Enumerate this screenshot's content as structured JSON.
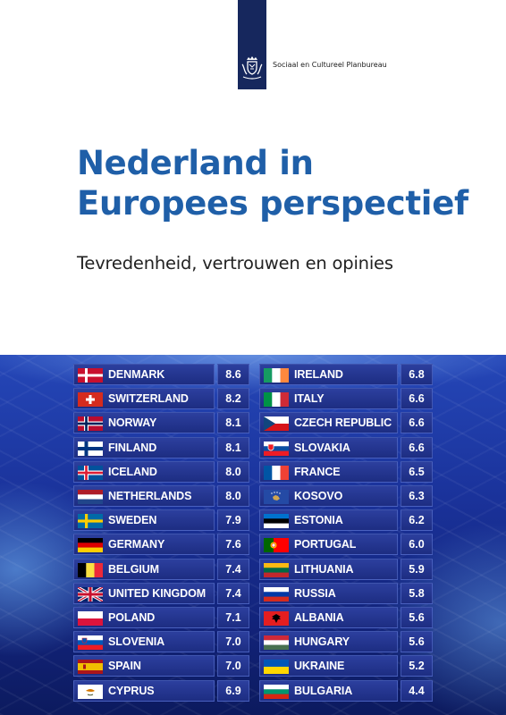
{
  "header": {
    "organization": "Sociaal en Cultureel Planbureau",
    "crest_icon": "royal-coat-of-arms-icon"
  },
  "title": {
    "line1": "Nederland in",
    "line2": "Europees perspectief"
  },
  "subtitle": "Tevredenheid,  vertrouwen en opinies",
  "colors": {
    "title": "#1f5fa8",
    "logo_strip": "#16275d",
    "board": "#1a329a"
  },
  "scoreboard": {
    "left": [
      {
        "country": "DENMARK",
        "score": "8.6",
        "flag": "denmark-flag-icon"
      },
      {
        "country": "SWITZERLAND",
        "score": "8.2",
        "flag": "switzerland-flag-icon"
      },
      {
        "country": "NORWAY",
        "score": "8.1",
        "flag": "norway-flag-icon"
      },
      {
        "country": "FINLAND",
        "score": "8.1",
        "flag": "finland-flag-icon"
      },
      {
        "country": "ICELAND",
        "score": "8.0",
        "flag": "iceland-flag-icon"
      },
      {
        "country": "NETHERLANDS",
        "score": "8.0",
        "flag": "netherlands-flag-icon"
      },
      {
        "country": "SWEDEN",
        "score": "7.9",
        "flag": "sweden-flag-icon"
      },
      {
        "country": "GERMANY",
        "score": "7.6",
        "flag": "germany-flag-icon"
      },
      {
        "country": "BELGIUM",
        "score": "7.4",
        "flag": "belgium-flag-icon"
      },
      {
        "country": "UNITED KINGDOM",
        "score": "7.4",
        "flag": "united-kingdom-flag-icon"
      },
      {
        "country": "POLAND",
        "score": "7.1",
        "flag": "poland-flag-icon"
      },
      {
        "country": "SLOVENIA",
        "score": "7.0",
        "flag": "slovenia-flag-icon"
      },
      {
        "country": "SPAIN",
        "score": "7.0",
        "flag": "spain-flag-icon"
      },
      {
        "country": "CYPRUS",
        "score": "6.9",
        "flag": "cyprus-flag-icon"
      }
    ],
    "right": [
      {
        "country": "IRELAND",
        "score": "6.8",
        "flag": "ireland-flag-icon"
      },
      {
        "country": "ITALY",
        "score": "6.6",
        "flag": "italy-flag-icon"
      },
      {
        "country": "CZECH REPUBLIC",
        "score": "6.6",
        "flag": "czech-republic-flag-icon"
      },
      {
        "country": "SLOVAKIA",
        "score": "6.6",
        "flag": "slovakia-flag-icon"
      },
      {
        "country": "FRANCE",
        "score": "6.5",
        "flag": "france-flag-icon"
      },
      {
        "country": "KOSOVO",
        "score": "6.3",
        "flag": "kosovo-flag-icon"
      },
      {
        "country": "ESTONIA",
        "score": "6.2",
        "flag": "estonia-flag-icon"
      },
      {
        "country": "PORTUGAL",
        "score": "6.0",
        "flag": "portugal-flag-icon"
      },
      {
        "country": "LITHUANIA",
        "score": "5.9",
        "flag": "lithuania-flag-icon"
      },
      {
        "country": "RUSSIA",
        "score": "5.8",
        "flag": "russia-flag-icon"
      },
      {
        "country": "ALBANIA",
        "score": "5.6",
        "flag": "albania-flag-icon"
      },
      {
        "country": "HUNGARY",
        "score": "5.6",
        "flag": "hungary-flag-icon"
      },
      {
        "country": "UKRAINE",
        "score": "5.2",
        "flag": "ukraine-flag-icon"
      },
      {
        "country": "BULGARIA",
        "score": "4.4",
        "flag": "bulgaria-flag-icon"
      }
    ]
  }
}
